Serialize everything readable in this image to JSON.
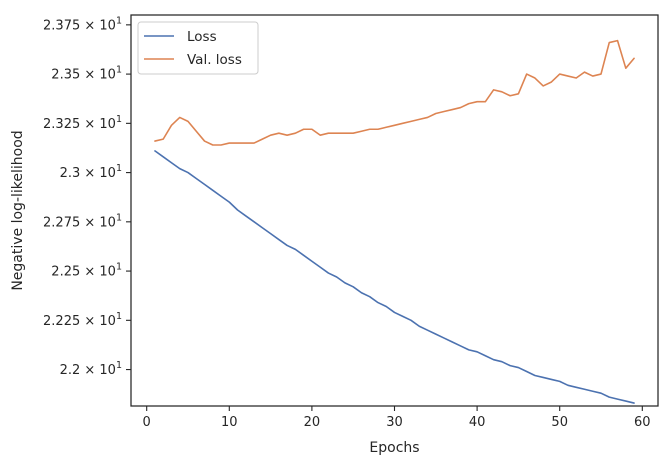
{
  "chart_data": {
    "type": "line",
    "xlabel": "Epochs",
    "ylabel": "Negative log-likelihood",
    "xlim": [
      -1.9,
      61.9
    ],
    "ylim": [
      21.815,
      23.8
    ],
    "xticks": [
      0,
      10,
      20,
      30,
      40,
      50,
      60
    ],
    "xtick_labels": [
      "0",
      "10",
      "20",
      "30",
      "40",
      "50",
      "60"
    ],
    "yticks": [
      22.0,
      22.25,
      22.5,
      22.75,
      23.0,
      23.25,
      23.5,
      23.75
    ],
    "ytick_mantissas": [
      "2.2",
      "2.225",
      "2.25",
      "2.275",
      "2.3",
      "2.325",
      "2.35",
      "2.375"
    ],
    "ytick_times": "×",
    "ytick_base": "10",
    "ytick_exponent": "1",
    "legend_position": "top-left",
    "grid": false,
    "x": [
      1,
      2,
      3,
      4,
      5,
      6,
      7,
      8,
      9,
      10,
      11,
      12,
      13,
      14,
      15,
      16,
      17,
      18,
      19,
      20,
      21,
      22,
      23,
      24,
      25,
      26,
      27,
      28,
      29,
      30,
      31,
      32,
      33,
      34,
      35,
      36,
      37,
      38,
      39,
      40,
      41,
      42,
      43,
      44,
      45,
      46,
      47,
      48,
      49,
      50,
      51,
      52,
      53,
      54,
      55,
      56,
      57,
      58,
      59
    ],
    "series": [
      {
        "name": "Loss",
        "color": "#4c72b0",
        "values": [
          23.11,
          23.08,
          23.05,
          23.02,
          23.0,
          22.97,
          22.94,
          22.91,
          22.88,
          22.85,
          22.81,
          22.78,
          22.75,
          22.72,
          22.69,
          22.66,
          22.63,
          22.61,
          22.58,
          22.55,
          22.52,
          22.49,
          22.47,
          22.44,
          22.42,
          22.39,
          22.37,
          22.34,
          22.32,
          22.29,
          22.27,
          22.25,
          22.22,
          22.2,
          22.18,
          22.16,
          22.14,
          22.12,
          22.1,
          22.09,
          22.07,
          22.05,
          22.04,
          22.02,
          22.01,
          21.99,
          21.97,
          21.96,
          21.95,
          21.94,
          21.92,
          21.91,
          21.9,
          21.89,
          21.88,
          21.86,
          21.85,
          21.84,
          21.83
        ]
      },
      {
        "name": "Val. loss",
        "color": "#dd8452",
        "values": [
          23.16,
          23.17,
          23.24,
          23.28,
          23.26,
          23.21,
          23.16,
          23.14,
          23.14,
          23.15,
          23.15,
          23.15,
          23.15,
          23.17,
          23.19,
          23.2,
          23.19,
          23.2,
          23.22,
          23.22,
          23.19,
          23.2,
          23.2,
          23.2,
          23.2,
          23.21,
          23.22,
          23.22,
          23.23,
          23.24,
          23.25,
          23.26,
          23.27,
          23.28,
          23.3,
          23.31,
          23.32,
          23.33,
          23.35,
          23.36,
          23.36,
          23.42,
          23.41,
          23.39,
          23.4,
          23.5,
          23.48,
          23.44,
          23.46,
          23.5,
          23.49,
          23.48,
          23.51,
          23.49,
          23.5,
          23.66,
          23.67,
          23.53,
          23.58
        ]
      }
    ]
  }
}
